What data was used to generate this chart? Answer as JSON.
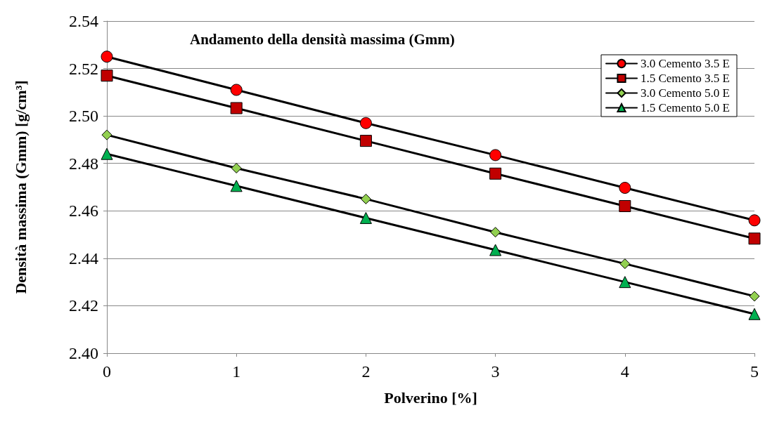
{
  "chart_data": {
    "type": "line",
    "title": "Andamento della densità massima (Gmm)",
    "xlabel": "Polverino [%]",
    "ylabel": "Densità massima (Gmm) [g/cm³]",
    "x": [
      0,
      1,
      2,
      3,
      4,
      5
    ],
    "series": [
      {
        "name": "3.0 Cemento 3.5 E",
        "color": "#ff0000",
        "marker": "circle",
        "values": [
          2.525,
          2.511,
          2.497,
          2.4835,
          2.4697,
          2.456
        ]
      },
      {
        "name": "1.5 Cemento 3.5 E",
        "color": "#c00000",
        "marker": "square",
        "values": [
          2.517,
          2.5033,
          2.4895,
          2.4757,
          2.462,
          2.4483
        ]
      },
      {
        "name": "3.0 Cemento 5.0 E",
        "color": "#92d050",
        "marker": "diamond",
        "values": [
          2.492,
          2.478,
          2.465,
          2.451,
          2.4377,
          2.424
        ]
      },
      {
        "name": "1.5 Cemento 5.0 E",
        "color": "#00b050",
        "marker": "triangle",
        "values": [
          2.484,
          2.4705,
          2.457,
          2.4435,
          2.43,
          2.4165
        ]
      }
    ],
    "xlim": [
      0,
      5
    ],
    "xticks": [
      0,
      1,
      2,
      3,
      4,
      5
    ],
    "ylim": [
      2.4,
      2.54
    ],
    "yticks": [
      {
        "value": 2.4,
        "label": "2.40"
      },
      {
        "value": 2.42,
        "label": "2.42"
      },
      {
        "value": 2.44,
        "label": "2.44"
      },
      {
        "value": 2.46,
        "label": "2.46"
      },
      {
        "value": 2.48,
        "label": "2.48"
      },
      {
        "value": 2.5,
        "label": "2.50"
      },
      {
        "value": 2.52,
        "label": "2.52"
      },
      {
        "value": 2.54,
        "label": "2.54"
      }
    ],
    "grid": "y",
    "legend": "top right",
    "line_style": "solid"
  }
}
